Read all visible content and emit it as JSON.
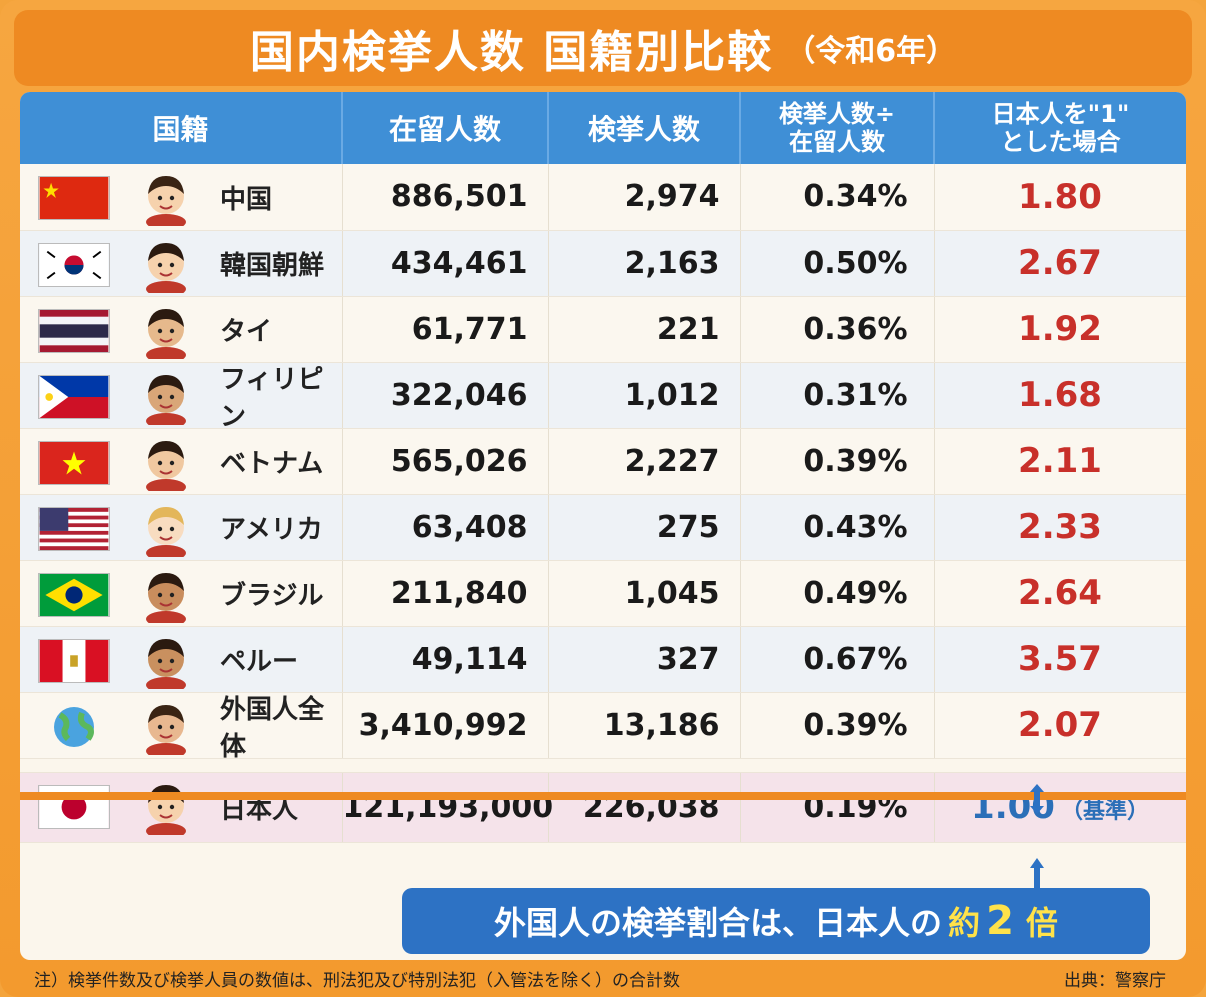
{
  "title": {
    "main": "国内検挙人数 国籍別比較",
    "sub": "（令和6年）"
  },
  "headers": {
    "country": "国籍",
    "residents": "在留人数",
    "arrests": "検挙人数",
    "rate_l1": "検挙人数÷",
    "rate_l2": "在留人数",
    "ratio_l1": "日本人を\"1\"",
    "ratio_l2": "とした場合"
  },
  "rows": [
    {
      "country": "中国",
      "residents": "886,501",
      "arrests": "2,974",
      "rate": "0.34%",
      "ratio": "1.80"
    },
    {
      "country": "韓国朝鮮",
      "residents": "434,461",
      "arrests": "2,163",
      "rate": "0.50%",
      "ratio": "2.67"
    },
    {
      "country": "タイ",
      "residents": "61,771",
      "arrests": "221",
      "rate": "0.36%",
      "ratio": "1.92"
    },
    {
      "country": "フィリピン",
      "residents": "322,046",
      "arrests": "1,012",
      "rate": "0.31%",
      "ratio": "1.68"
    },
    {
      "country": "ベトナム",
      "residents": "565,026",
      "arrests": "2,227",
      "rate": "0.39%",
      "ratio": "2.11"
    },
    {
      "country": "アメリカ",
      "residents": "63,408",
      "arrests": "275",
      "rate": "0.43%",
      "ratio": "2.33"
    },
    {
      "country": "ブラジル",
      "residents": "211,840",
      "arrests": "1,045",
      "rate": "0.49%",
      "ratio": "2.64"
    },
    {
      "country": "ペルー",
      "residents": "49,114",
      "arrests": "327",
      "rate": "0.67%",
      "ratio": "3.57"
    },
    {
      "country": "外国人全体",
      "residents": "3,410,992",
      "arrests": "13,186",
      "rate": "0.39%",
      "ratio": "2.07"
    }
  ],
  "japan": {
    "country": "日本人",
    "residents": "121,193,000",
    "arrests": "226,038",
    "rate": "0.19%",
    "ratio": "1.00",
    "note": "（基準）"
  },
  "callout": {
    "pre": "外国人の検挙割合は、日本人の",
    "yaku": "約",
    "num": "2",
    "bai": "倍"
  },
  "footnote": "注）検挙件数及び検挙人員の数値は、刑法犯及び特別法犯（入管法を除く）の合計数",
  "source": "出典：警察庁",
  "colors": {
    "header_blue": "#3f8fd6",
    "orange": "#ee8a22",
    "ratio_red": "#c8302a",
    "japan_blue": "#2b6fb8"
  }
}
